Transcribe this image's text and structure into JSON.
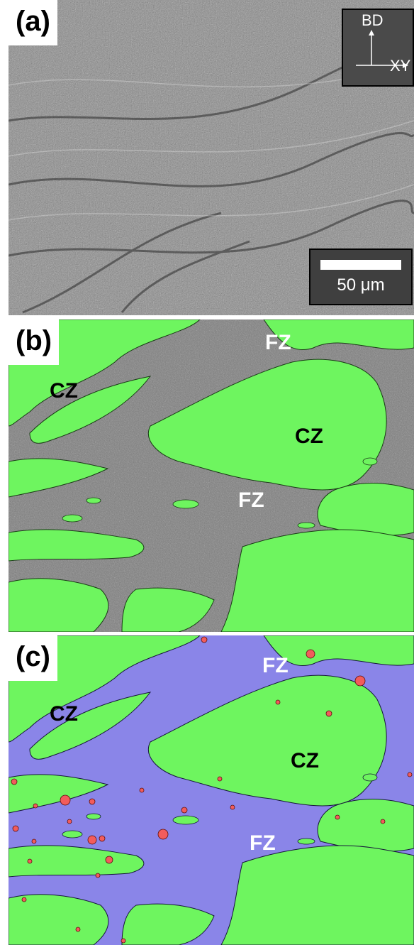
{
  "figure": {
    "panels": [
      {
        "label": "(a)"
      },
      {
        "label": "(b)",
        "zone_labels": [
          "CZ",
          "FZ",
          "CZ",
          "FZ"
        ]
      },
      {
        "label": "(c)",
        "zone_labels": [
          "CZ",
          "FZ",
          "CZ",
          "FZ"
        ]
      }
    ],
    "orientation": {
      "vertical": "BD",
      "horizontal": "XY"
    },
    "scale_bar": {
      "text": "50 μm"
    }
  },
  "colors": {
    "sem_background": "#8e8e8e",
    "cz_green": "#6ef55f",
    "fz_blue": "#8a85e8",
    "particle_red": "#f25c5c",
    "fz_gray_texture": "#7d7d7d"
  }
}
